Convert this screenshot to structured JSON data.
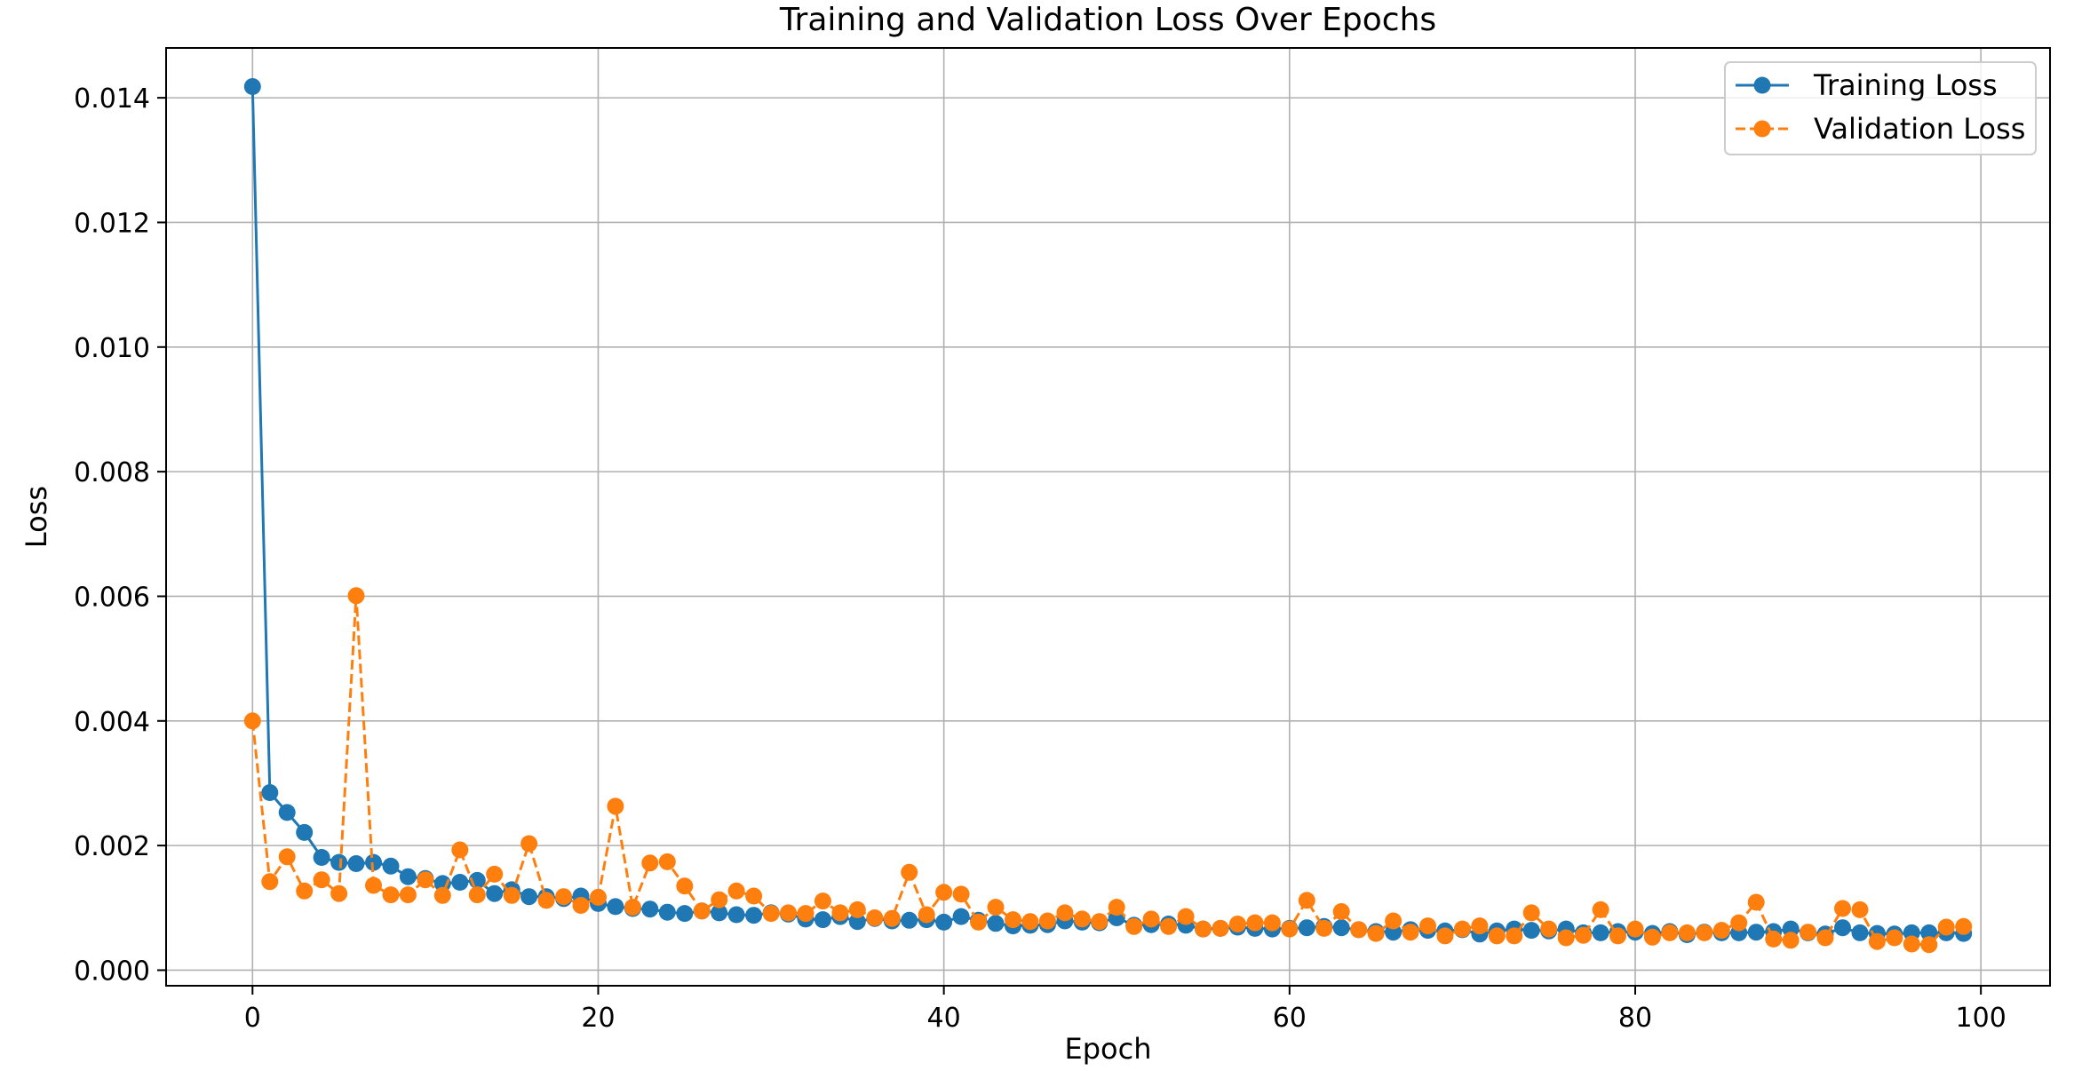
{
  "chart_data": {
    "type": "line",
    "title": "Training and Validation Loss Over Epochs",
    "xlabel": "Epoch",
    "ylabel": "Loss",
    "xlim": [
      -5,
      104
    ],
    "ylim": [
      -0.00025,
      0.0148
    ],
    "xticks": [
      0,
      20,
      40,
      60,
      80,
      100
    ],
    "yticks": [
      0.0,
      0.002,
      0.004,
      0.006,
      0.008,
      0.01,
      0.012,
      0.014
    ],
    "ytick_labels": [
      "0.000",
      "0.002",
      "0.004",
      "0.006",
      "0.008",
      "0.010",
      "0.012",
      "0.014"
    ],
    "grid": true,
    "legend": "top-right",
    "series": [
      {
        "name": "Training Loss",
        "color": "#1f77b4",
        "linestyle": "solid",
        "marker": "circle",
        "values": [
          0.01418,
          0.00285,
          0.00253,
          0.00221,
          0.00181,
          0.00173,
          0.00171,
          0.00173,
          0.00167,
          0.0015,
          0.00147,
          0.00139,
          0.00141,
          0.00144,
          0.00123,
          0.00129,
          0.00118,
          0.00118,
          0.00115,
          0.00119,
          0.00107,
          0.00102,
          0.00099,
          0.00098,
          0.00093,
          0.00091,
          0.00095,
          0.00092,
          0.00089,
          0.00088,
          0.00092,
          0.0009,
          0.00082,
          0.00081,
          0.00086,
          0.00078,
          0.00083,
          0.00079,
          0.0008,
          0.00081,
          0.00077,
          0.00086,
          0.0008,
          0.00075,
          0.00071,
          0.00072,
          0.00073,
          0.00079,
          0.00077,
          0.00076,
          0.00084,
          0.00072,
          0.00073,
          0.00074,
          0.00072,
          0.00066,
          0.00067,
          0.00069,
          0.00067,
          0.00066,
          0.00067,
          0.00068,
          0.0007,
          0.00068,
          0.00065,
          0.00062,
          0.00061,
          0.00065,
          0.00064,
          0.00063,
          0.00065,
          0.00058,
          0.00063,
          0.00066,
          0.00064,
          0.00063,
          0.00066,
          0.0006,
          0.0006,
          0.00062,
          0.00061,
          0.00059,
          0.00062,
          0.00057,
          0.00061,
          0.0006,
          0.0006,
          0.00061,
          0.00062,
          0.00066,
          0.0006,
          0.00058,
          0.00068,
          0.0006,
          0.00059,
          0.00058,
          0.0006,
          0.0006,
          0.0006,
          0.00059
        ]
      },
      {
        "name": "Validation Loss",
        "color": "#ff7f0e",
        "linestyle": "dashed",
        "marker": "circle",
        "values": [
          0.004,
          0.00142,
          0.00182,
          0.00127,
          0.00145,
          0.00123,
          0.00601,
          0.00136,
          0.00121,
          0.00121,
          0.00145,
          0.0012,
          0.00193,
          0.00121,
          0.00154,
          0.0012,
          0.00203,
          0.00112,
          0.00118,
          0.00104,
          0.00117,
          0.00263,
          0.00101,
          0.00172,
          0.00174,
          0.00135,
          0.00095,
          0.00113,
          0.00127,
          0.00119,
          0.00091,
          0.00092,
          0.00091,
          0.00111,
          0.00092,
          0.00097,
          0.00084,
          0.00083,
          0.00157,
          0.00089,
          0.00125,
          0.00122,
          0.00077,
          0.00101,
          0.00081,
          0.00078,
          0.00079,
          0.00092,
          0.00082,
          0.00078,
          0.00101,
          0.0007,
          0.00082,
          0.0007,
          0.00086,
          0.00066,
          0.00067,
          0.00074,
          0.00076,
          0.00076,
          0.00066,
          0.00112,
          0.00067,
          0.00094,
          0.00065,
          0.00059,
          0.00079,
          0.00061,
          0.00071,
          0.00055,
          0.00066,
          0.00071,
          0.00055,
          0.00055,
          0.00092,
          0.00066,
          0.00052,
          0.00056,
          0.00097,
          0.00055,
          0.00066,
          0.00053,
          0.0006,
          0.0006,
          0.0006,
          0.00064,
          0.00076,
          0.00109,
          0.0005,
          0.00048,
          0.00061,
          0.00052,
          0.00099,
          0.00097,
          0.00046,
          0.00052,
          0.00042,
          0.00041,
          0.00069,
          0.0007
        ]
      }
    ]
  }
}
